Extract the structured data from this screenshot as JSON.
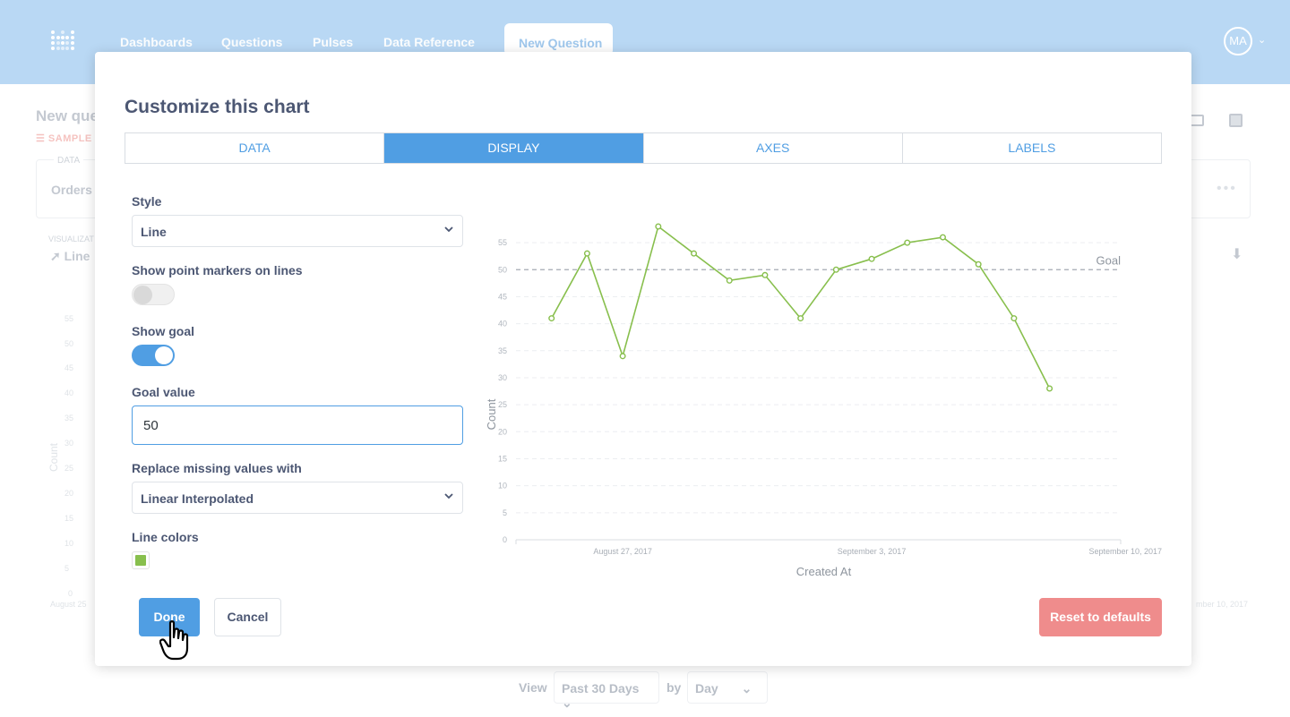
{
  "nav": {
    "logo": "metabase-logo-icon",
    "links": [
      "Dashboards",
      "Questions",
      "Pulses",
      "Data Reference"
    ],
    "active_tab": "New Question",
    "avatar_initials": "MA",
    "bg_color": "#b9d8f4"
  },
  "background": {
    "title": "New que",
    "sample_label": "SAMPLE",
    "data_tag": "DATA",
    "table": "Orders",
    "vis_label": "VISUALIZAT",
    "vis_value": "Line",
    "y_ticks": [
      "55",
      "50",
      "45",
      "40",
      "35",
      "30",
      "25",
      "20",
      "15",
      "10",
      "5",
      "0"
    ],
    "y_label": "Count",
    "x_left": "August 25",
    "x_right": "mber 10, 2017",
    "view_label": "View",
    "view_value": "Past 30 Days",
    "by_label": "by",
    "by_value": "Day"
  },
  "modal": {
    "title": "Customize this chart",
    "tabs": [
      "DATA",
      "DISPLAY",
      "AXES",
      "LABELS"
    ],
    "active_tab": "DISPLAY",
    "style_label": "Style",
    "style_value": "Line",
    "markers_label": "Show point markers on lines",
    "markers_on": false,
    "goal_label": "Show goal",
    "goal_on": true,
    "goal_value_label": "Goal value",
    "goal_value": "50",
    "missing_label": "Replace missing values with",
    "missing_value": "Linear Interpolated",
    "colors_label": "Line colors",
    "line_color": "#88bf4d",
    "done_label": "Done",
    "cancel_label": "Cancel",
    "reset_label": "Reset to defaults",
    "accent_color": "#509ee3",
    "reset_color": "#ef8c8c"
  },
  "chart_data": {
    "type": "line",
    "x": [
      "2017-08-25",
      "2017-08-26",
      "2017-08-27",
      "2017-08-28",
      "2017-08-29",
      "2017-08-30",
      "2017-08-31",
      "2017-09-01",
      "2017-09-02",
      "2017-09-03",
      "2017-09-04",
      "2017-09-05",
      "2017-09-06",
      "2017-09-07",
      "2017-09-08"
    ],
    "x_tick_labels": [
      "August 27, 2017",
      "September 3, 2017",
      "September 10, 2017"
    ],
    "x_tick_dates": [
      "2017-08-27",
      "2017-09-03",
      "2017-09-10"
    ],
    "xlim": [
      "2017-08-24",
      "2017-09-10"
    ],
    "series": [
      {
        "values": [
          41,
          53,
          34,
          58,
          53,
          48,
          49,
          41,
          50,
          52,
          55,
          56,
          51,
          41,
          28
        ],
        "color": "#88bf4d"
      }
    ],
    "y_ticks": [
      0,
      5,
      10,
      15,
      20,
      25,
      30,
      35,
      40,
      45,
      50,
      55
    ],
    "ylim": [
      0,
      58
    ],
    "xlabel": "Created At",
    "ylabel": "Count",
    "goal": 50,
    "goal_label": "Goal",
    "grid": true
  }
}
